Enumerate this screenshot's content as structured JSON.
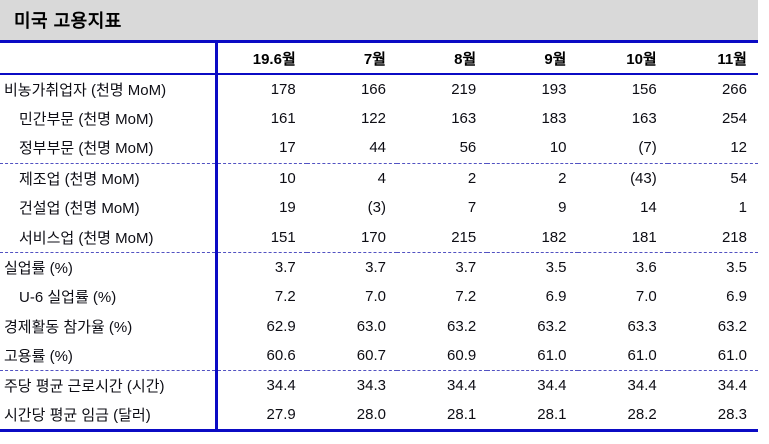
{
  "title": "미국 고용지표",
  "colors": {
    "accent_blue": "#0b0bc4",
    "dashed_separator_blue": "#5252c2",
    "title_band_gray": "#d9d9d9",
    "text": "#000000"
  },
  "chart_data": {
    "type": "table",
    "title": "미국 고용지표",
    "columns": [
      "19.6월",
      "7월",
      "8월",
      "9월",
      "10월",
      "11월"
    ],
    "rows": [
      {
        "label": "비농가취업자 (천명 MoM)",
        "indent": false,
        "dashed_top": false,
        "values": [
          "178",
          "166",
          "219",
          "193",
          "156",
          "266"
        ]
      },
      {
        "label": "민간부문 (천명 MoM)",
        "indent": true,
        "dashed_top": false,
        "values": [
          "161",
          "122",
          "163",
          "183",
          "163",
          "254"
        ]
      },
      {
        "label": "정부부문 (천명 MoM)",
        "indent": true,
        "dashed_top": false,
        "values": [
          "17",
          "44",
          "56",
          "10",
          "(7)",
          "12"
        ]
      },
      {
        "label": "제조업 (천명 MoM)",
        "indent": true,
        "dashed_top": true,
        "values": [
          "10",
          "4",
          "2",
          "2",
          "(43)",
          "54"
        ]
      },
      {
        "label": "건설업 (천명 MoM)",
        "indent": true,
        "dashed_top": false,
        "values": [
          "19",
          "(3)",
          "7",
          "9",
          "14",
          "1"
        ]
      },
      {
        "label": "서비스업 (천명 MoM)",
        "indent": true,
        "dashed_top": false,
        "values": [
          "151",
          "170",
          "215",
          "182",
          "181",
          "218"
        ]
      },
      {
        "label": "실업률 (%)",
        "indent": false,
        "dashed_top": true,
        "values": [
          "3.7",
          "3.7",
          "3.7",
          "3.5",
          "3.6",
          "3.5"
        ]
      },
      {
        "label": "U-6 실업률 (%)",
        "indent": true,
        "dashed_top": false,
        "values": [
          "7.2",
          "7.0",
          "7.2",
          "6.9",
          "7.0",
          "6.9"
        ]
      },
      {
        "label": "경제활동 참가율 (%)",
        "indent": false,
        "dashed_top": false,
        "values": [
          "62.9",
          "63.0",
          "63.2",
          "63.2",
          "63.3",
          "63.2"
        ]
      },
      {
        "label": "고용률 (%)",
        "indent": false,
        "dashed_top": false,
        "values": [
          "60.6",
          "60.7",
          "60.9",
          "61.0",
          "61.0",
          "61.0"
        ]
      },
      {
        "label": "주당 평균 근로시간 (시간)",
        "indent": false,
        "dashed_top": true,
        "values": [
          "34.4",
          "34.3",
          "34.4",
          "34.4",
          "34.4",
          "34.4"
        ]
      },
      {
        "label": "시간당 평균 임금 (달러)",
        "indent": false,
        "dashed_top": false,
        "values": [
          "27.9",
          "28.0",
          "28.1",
          "28.1",
          "28.2",
          "28.3"
        ]
      }
    ]
  }
}
